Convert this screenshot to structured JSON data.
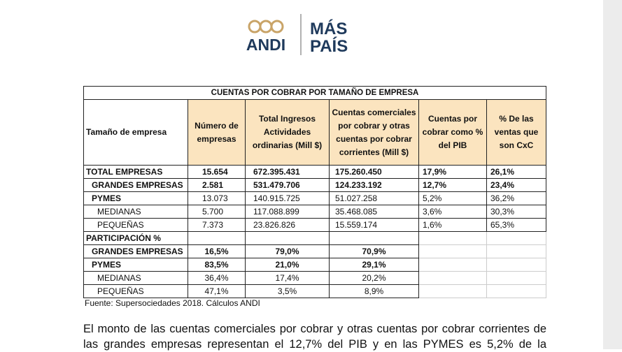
{
  "logo": {
    "left": "ANDI",
    "right_top": "MÁS",
    "right_bottom": "PAÍS"
  },
  "table": {
    "title": "CUENTAS POR COBRAR POR TAMAÑO DE EMPRESA",
    "header": [
      "Tamaño de empresa",
      "Número de empresas",
      "Total Ingresos Actividades ordinarias (Mill $)",
      "Cuentas comerciales por cobrar y otras cuentas por cobrar corrientes (Mill $)",
      "Cuentas por cobrar como % del PIB",
      "% De las ventas que son CxC"
    ],
    "rows": [
      {
        "label": "TOTAL EMPRESAS",
        "values": [
          "15.654",
          "672.395.431",
          "175.260.450",
          "17,9%",
          "26,1%"
        ],
        "bold": true,
        "indent": 0
      },
      {
        "label": "GRANDES EMPRESAS",
        "values": [
          "2.581",
          "531.479.706",
          "124.233.192",
          "12,7%",
          "23,4%"
        ],
        "bold": true,
        "indent": 1
      },
      {
        "label": "PYMES",
        "values": [
          "13.073",
          "140.915.725",
          "51.027.258",
          "5,2%",
          "36,2%"
        ],
        "bold": false,
        "indent": 1
      },
      {
        "label": "MEDIANAS",
        "values": [
          "5.700",
          "117.088.899",
          "35.468.085",
          "3,6%",
          "30,3%"
        ],
        "bold": false,
        "indent": 2
      },
      {
        "label": "PEQUEÑAS",
        "values": [
          "7.373",
          "23.826.826",
          "15.559.174",
          "1,6%",
          "65,3%"
        ],
        "bold": false,
        "indent": 2
      }
    ],
    "section_title": "PARTICIPACIÓN %",
    "section_rows": [
      {
        "label": "GRANDES EMPRESAS",
        "values": [
          "16,5%",
          "79,0%",
          "70,9%"
        ],
        "bold": true,
        "indent": 1
      },
      {
        "label": "PYMES",
        "values": [
          "83,5%",
          "21,0%",
          "29,1%"
        ],
        "bold": true,
        "indent": 1
      },
      {
        "label": "MEDIANAS",
        "values": [
          "36,4%",
          "17,4%",
          "20,2%"
        ],
        "bold": false,
        "indent": 2
      },
      {
        "label": "PEQUEÑAS",
        "values": [
          "47,1%",
          "3,5%",
          "8,9%"
        ],
        "bold": false,
        "indent": 2
      }
    ],
    "source": "Fuente: Supersociedades 2018. Cálculos ANDI"
  },
  "paragraph": "El monto de las cuentas comerciales por cobrar y otras cuentas por cobrar corrientes de las grandes empresas representan el 12,7% del PIB y en las PYMES es 5,2% de la"
}
